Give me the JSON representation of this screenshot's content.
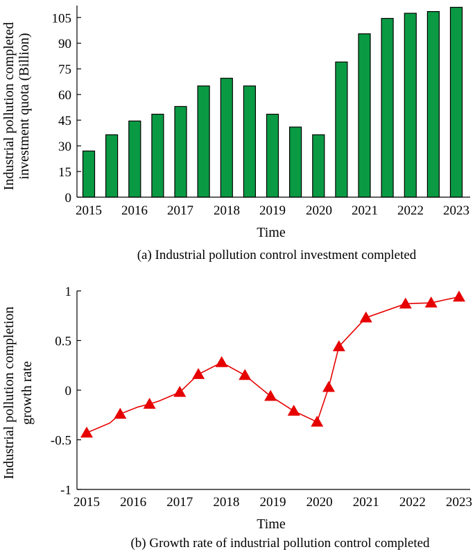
{
  "chart_data": [
    {
      "type": "bar",
      "title": "",
      "caption": "(a) Industrial pollution control investment completed",
      "xlabel": "Time",
      "ylabel_lines": [
        "Industrial pollution completed",
        "investment quota (Billion)"
      ],
      "ylim": [
        0,
        112
      ],
      "yticks": [
        0,
        15,
        30,
        45,
        60,
        75,
        90,
        105
      ],
      "xticks": [
        "2015",
        "2016",
        "2017",
        "2018",
        "2019",
        "2020",
        "2021",
        "2022",
        "2023"
      ],
      "values": [
        27,
        36.5,
        44.5,
        48.5,
        53,
        65,
        69.5,
        65,
        48.5,
        41,
        36.5,
        79,
        95.5,
        104.5,
        107.5,
        108.5,
        111
      ],
      "bar_color": "#0a9a44"
    },
    {
      "type": "line",
      "title": "",
      "caption": "(b) Growth rate of industrial pollution control completed",
      "xlabel": "Time",
      "ylabel_lines": [
        "Industrial pollution completion",
        "growth rate"
      ],
      "ylim": [
        -1,
        1
      ],
      "yticks": [
        1,
        0.5,
        0,
        -0.5,
        -1
      ],
      "ytick_labels": [
        "1",
        "0.5",
        "0",
        "-0.5",
        "-1"
      ],
      "xticks": [
        "2015",
        "2016",
        "2017",
        "2018",
        "2019",
        "2020",
        "2021",
        "2022",
        "2023"
      ],
      "x": [
        2015.0,
        2015.5,
        2015.72,
        2016.1,
        2016.35,
        2016.55,
        2017.0,
        2017.4,
        2017.9,
        2018.4,
        2018.95,
        2019.45,
        2019.95,
        2020.2,
        2020.42,
        2021.0,
        2021.85,
        2022.4,
        2023.0
      ],
      "values": [
        -0.43,
        -0.33,
        -0.24,
        -0.17,
        -0.14,
        -0.11,
        -0.02,
        0.16,
        0.28,
        0.15,
        -0.06,
        -0.21,
        -0.32,
        0.03,
        0.44,
        0.73,
        0.87,
        0.88,
        0.94
      ],
      "markers": [
        true,
        false,
        true,
        false,
        true,
        false,
        true,
        true,
        true,
        true,
        true,
        true,
        true,
        true,
        true,
        true,
        true,
        true,
        true
      ],
      "line_color": "#e60000"
    }
  ]
}
